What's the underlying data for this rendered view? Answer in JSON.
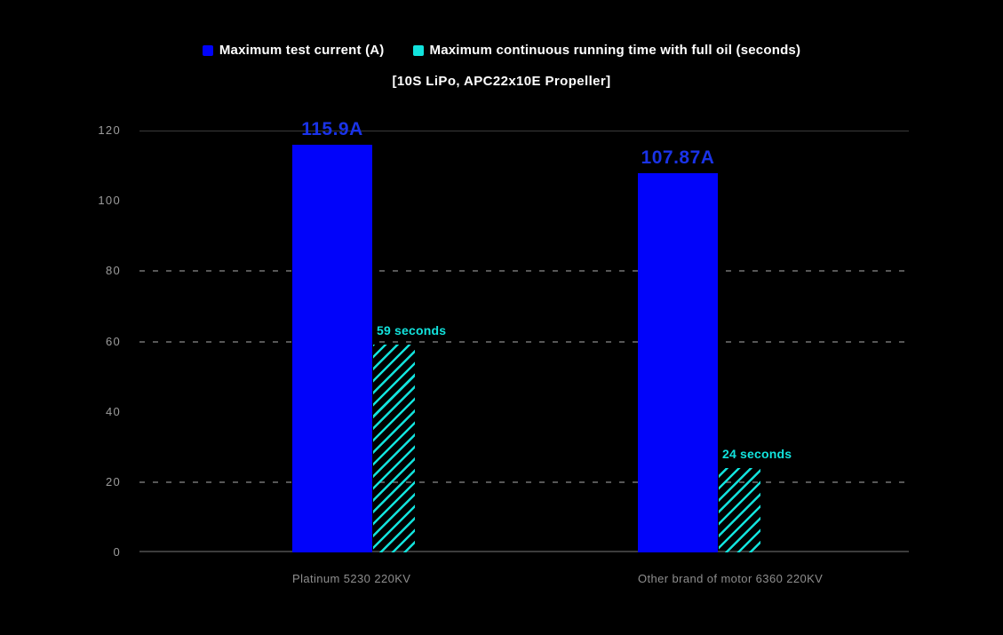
{
  "chart_data": {
    "type": "bar",
    "title": "【10S LiPo，APC22x10E Propeller】",
    "categories": [
      "Platinum 5230 220KV",
      "Other brand of motor 6360 220KV"
    ],
    "series": [
      {
        "name": "Maximum test current (A)",
        "values": [
          115.9,
          107.87
        ],
        "data_labels": [
          "115.9A",
          "107.87A"
        ],
        "color": "#0103fa",
        "style": "solid"
      },
      {
        "name": "Maximum continuous running time with full oil (seconds)",
        "values": [
          59,
          24
        ],
        "data_labels": [
          "59 seconds",
          "24 seconds"
        ],
        "color": "#12e3dd",
        "style": "diagonal-hatch"
      }
    ],
    "ylim": [
      0,
      120
    ],
    "yticks": [
      0,
      20,
      40,
      60,
      80,
      100,
      120
    ],
    "gridlines": {
      "solid": [
        120
      ],
      "dashed": [
        80,
        60,
        20
      ],
      "axis": 0
    },
    "legend_position": "top-center",
    "background": "#000000"
  },
  "colors": {
    "background": "#000000",
    "bar_blue": "#0103fa",
    "bar_cyan": "#12e3dd",
    "value_label_blue": "#1a33e8",
    "value_label_cyan": "#12e3dd",
    "grid_solid": "#3a3a3a",
    "grid_dashed": "#575757",
    "axis_line": "#3c3c3c",
    "y_tick_text": "#9c9c9c",
    "category_text": "#8e8e8e",
    "legend_text": "#ffffff",
    "title_text": "#ffffff"
  }
}
